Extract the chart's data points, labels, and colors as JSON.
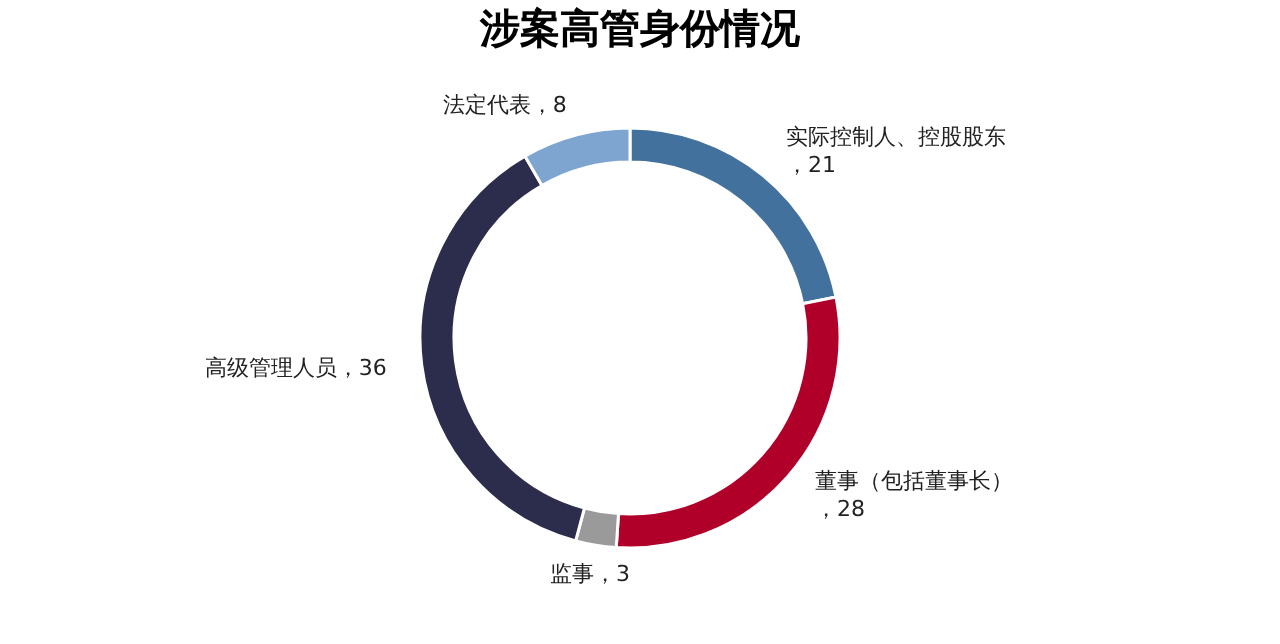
{
  "chart_data": {
    "type": "donut",
    "title": "涉案高管身份情况",
    "categories": [
      "实际控制人、控股股东",
      "董事（包括董事长）",
      "监事",
      "高级管理人员",
      "法定代表"
    ],
    "values": [
      21,
      28,
      3,
      36,
      8
    ],
    "colors": [
      "#41719c",
      "#b0002a",
      "#9a9a9a",
      "#2c2c4c",
      "#7ea5cf"
    ],
    "value_labels": [
      "，21",
      "，28",
      "，3",
      "，36",
      "，8"
    ],
    "legend": false
  }
}
